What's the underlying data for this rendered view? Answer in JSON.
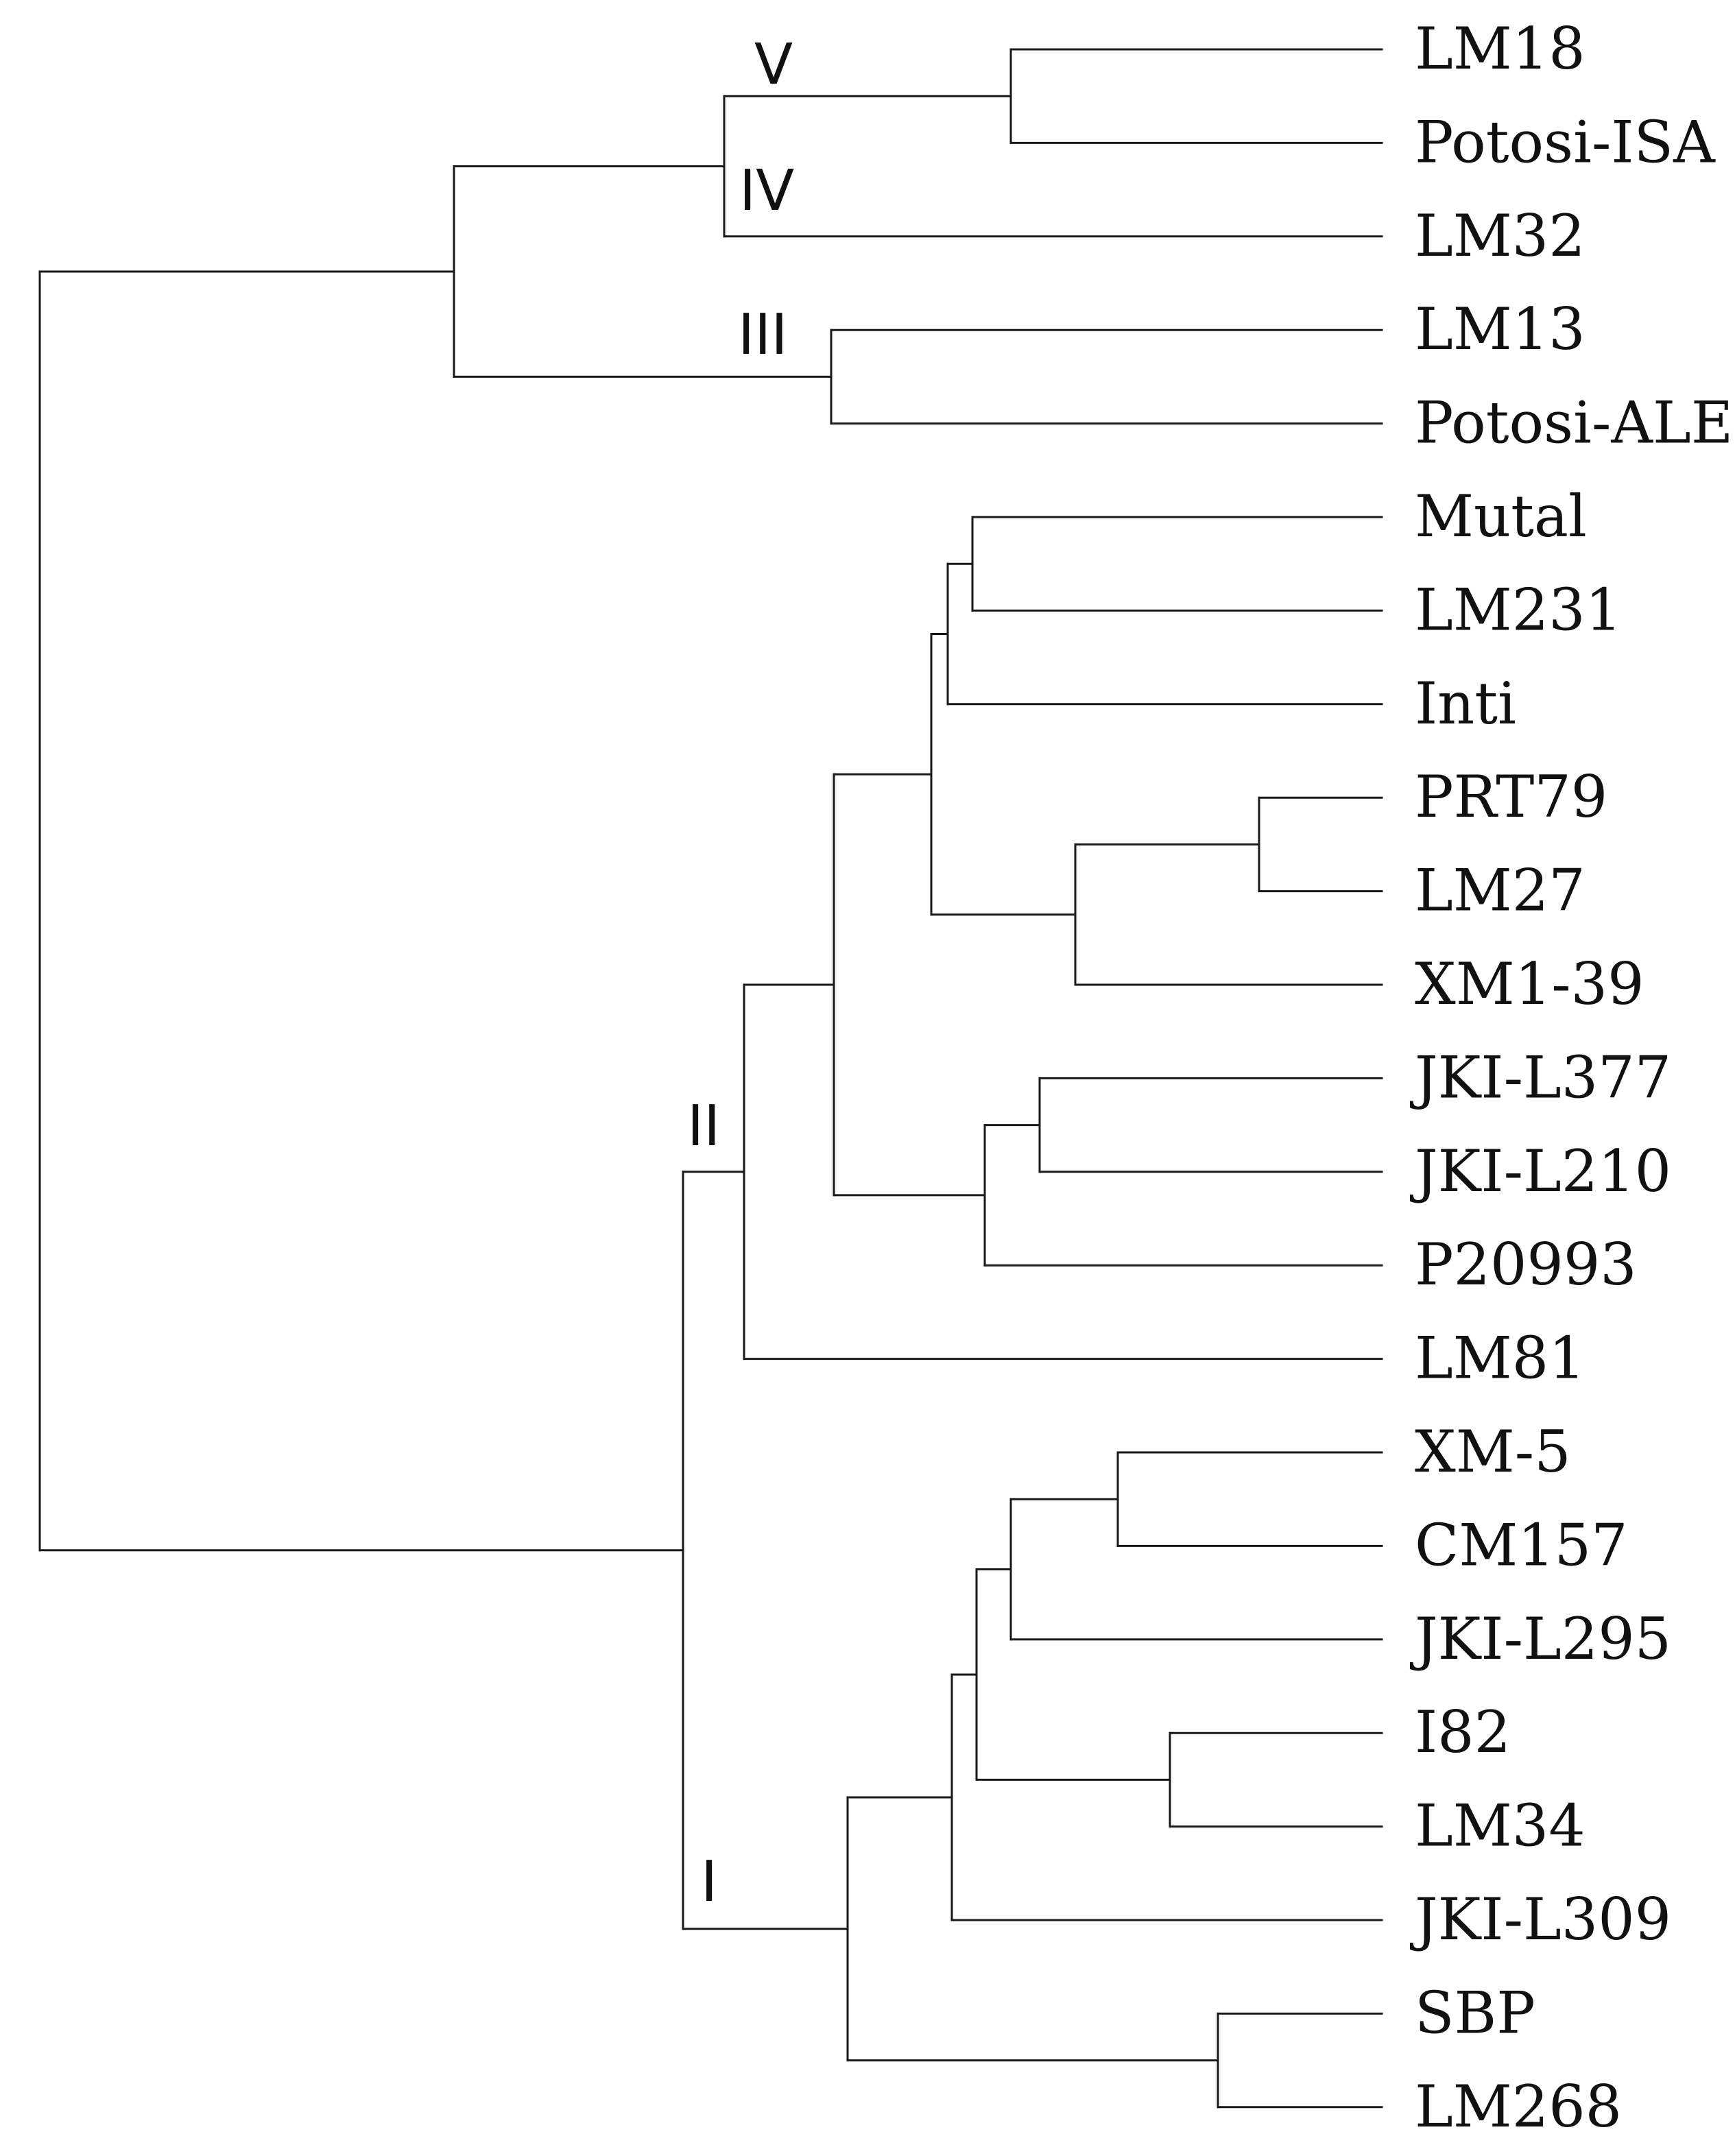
{
  "figure": {
    "type": "dendrogram",
    "leaves": [
      "LM18",
      "Potosi-ISA",
      "LM32",
      "LM13",
      "Potosi-ALE",
      "Mutal",
      "LM231",
      "Inti",
      "PRT79",
      "LM27",
      "XM1-39",
      "JKI-L377",
      "JKI-L210",
      "P20993",
      "LM81",
      "XM-5",
      "CM157",
      "JKI-L295",
      "I82",
      "LM34",
      "JKI-L309",
      "SBP",
      "LM268"
    ],
    "clade_labels": {
      "V": "V",
      "IV": "IV",
      "III": "III",
      "II": "II",
      "I": "I"
    }
  }
}
